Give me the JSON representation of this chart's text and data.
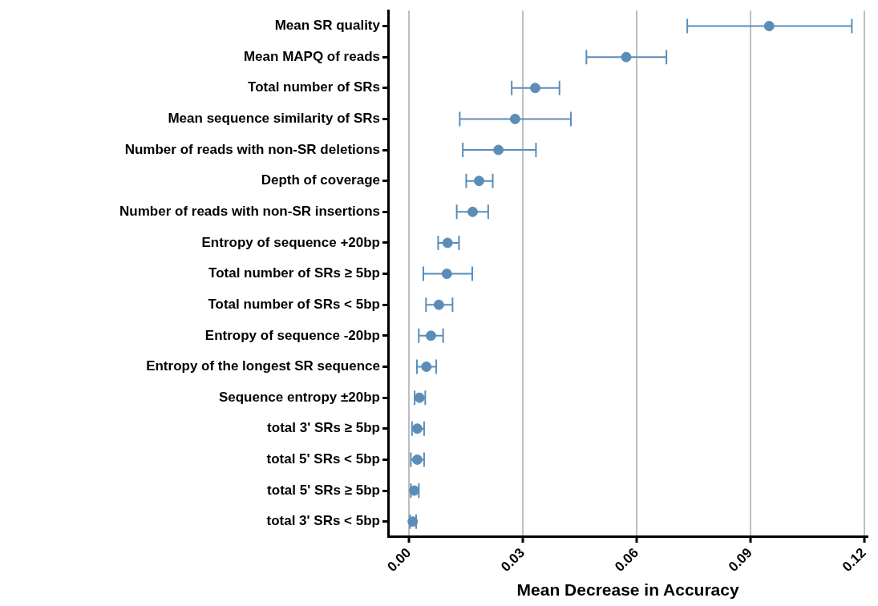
{
  "chart_data": {
    "type": "scatter",
    "orientation": "horizontal",
    "xlabel": "Mean Decrease in Accuracy",
    "categories": [
      "Mean SR quality",
      "Mean MAPQ of reads",
      "Total number of SRs",
      "Mean sequence similarity of SRs",
      "Number of reads with non-SR deletions",
      "Depth of coverage",
      "Number of reads with non-SR insertions",
      "Entropy of sequence +20bp",
      "Total number of SRs ≥ 5bp",
      "Total number of SRs < 5bp",
      "Entropy of sequence -20bp",
      "Entropy of the longest SR sequence",
      "Sequence entropy ±20bp",
      "total 3' SRs ≥ 5bp",
      "total 5' SRs < 5bp",
      "total 5' SRs ≥ 5bp",
      "total 3' SRs < 5bp"
    ],
    "values": [
      0.095,
      0.0573,
      0.0333,
      0.028,
      0.0236,
      0.0185,
      0.0168,
      0.0102,
      0.01,
      0.0079,
      0.0058,
      0.0046,
      0.0028,
      0.0022,
      0.0022,
      0.0014,
      0.001
    ],
    "errors": [
      [
        0.0734,
        0.1168
      ],
      [
        0.0468,
        0.0679
      ],
      [
        0.0271,
        0.0397
      ],
      [
        0.0134,
        0.0427
      ],
      [
        0.0142,
        0.0335
      ],
      [
        0.0151,
        0.0221
      ],
      [
        0.0126,
        0.0209
      ],
      [
        0.0077,
        0.0132
      ],
      [
        0.0038,
        0.0167
      ],
      [
        0.0045,
        0.0115
      ],
      [
        0.0026,
        0.009
      ],
      [
        0.0021,
        0.0072
      ],
      [
        0.0015,
        0.0043
      ],
      [
        0.0008,
        0.004
      ],
      [
        0.0005,
        0.004
      ],
      [
        0.0005,
        0.0026
      ],
      [
        0.0003,
        0.0019
      ]
    ],
    "color": "#5b8db8",
    "marker": "circle",
    "grid": "x",
    "xlim": [
      -0.0055,
      0.121
    ],
    "xticks": [
      {
        "value": 0,
        "label": "0.00"
      },
      {
        "value": 0.03,
        "label": "0.03"
      },
      {
        "value": 0.06,
        "label": "0.06"
      },
      {
        "value": 0.09,
        "label": "0.09"
      },
      {
        "value": 0.12,
        "label": "0.12"
      }
    ]
  }
}
